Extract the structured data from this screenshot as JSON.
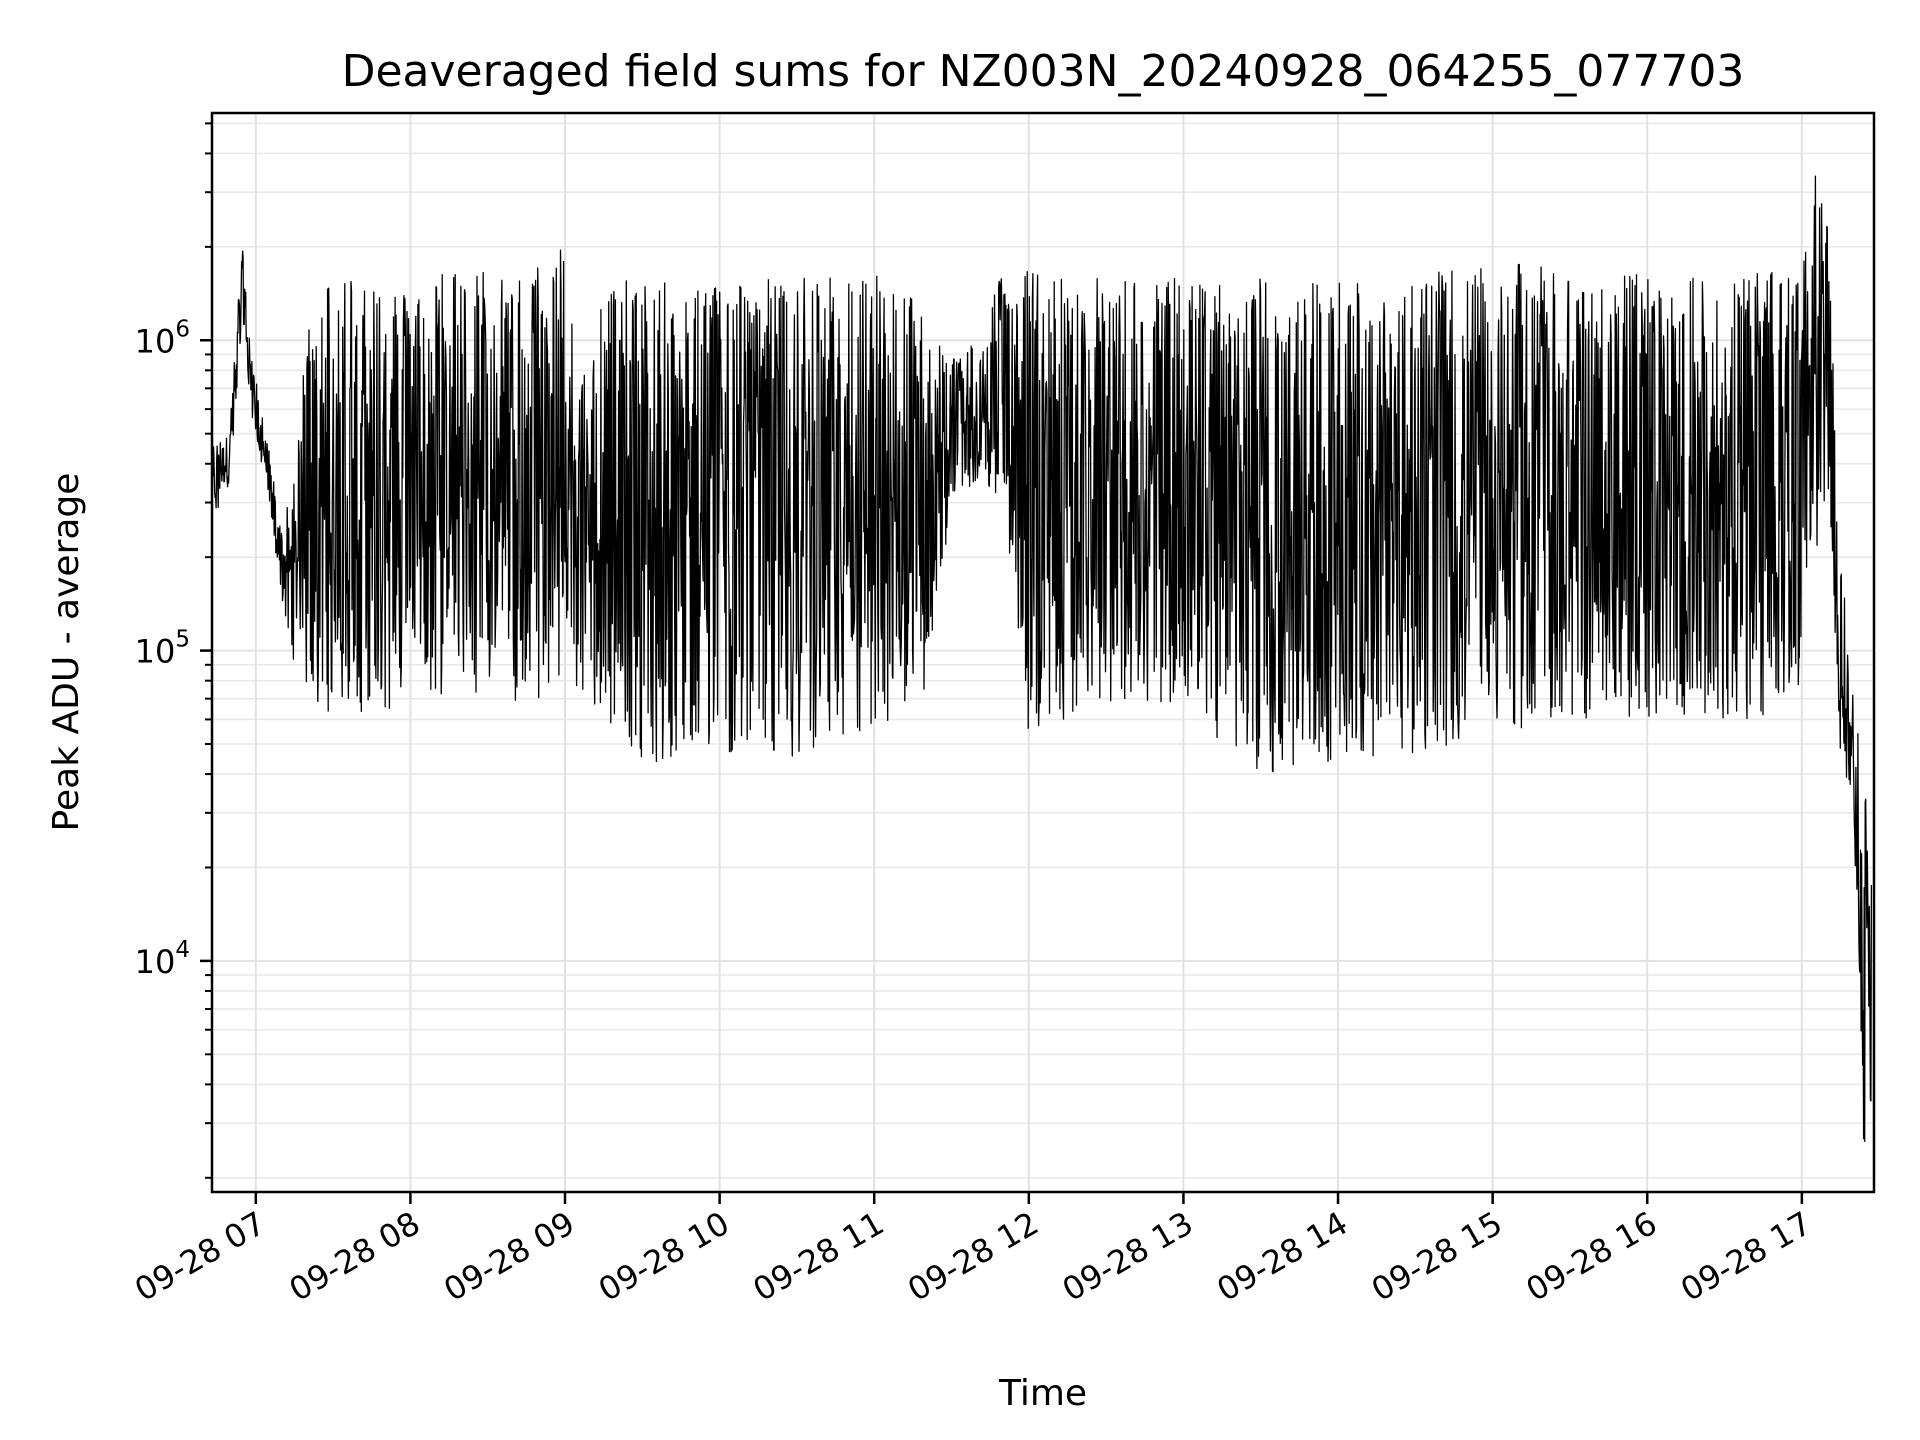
{
  "chart_data": {
    "type": "line",
    "title": "Deaveraged field sums for NZ003N_20240928_064255_077703",
    "xlabel": "Time",
    "ylabel": "Peak ADU - average",
    "y_scale": "log",
    "grid": true,
    "grid_minor": true,
    "line_color": "#000000",
    "x_range": [
      "2024-09-28 06:43",
      "2024-09-28 17:28"
    ],
    "y_range": [
      1800,
      5400000
    ],
    "x_ticks": [
      {
        "value": "2024-09-28 07:00",
        "label": "09-28 07"
      },
      {
        "value": "2024-09-28 08:00",
        "label": "09-28 08"
      },
      {
        "value": "2024-09-28 09:00",
        "label": "09-28 09"
      },
      {
        "value": "2024-09-28 10:00",
        "label": "09-28 10"
      },
      {
        "value": "2024-09-28 11:00",
        "label": "09-28 11"
      },
      {
        "value": "2024-09-28 12:00",
        "label": "09-28 12"
      },
      {
        "value": "2024-09-28 13:00",
        "label": "09-28 13"
      },
      {
        "value": "2024-09-28 14:00",
        "label": "09-28 14"
      },
      {
        "value": "2024-09-28 15:00",
        "label": "09-28 15"
      },
      {
        "value": "2024-09-28 16:00",
        "label": "09-28 16"
      },
      {
        "value": "2024-09-28 17:00",
        "label": "09-28 17"
      }
    ],
    "y_ticks": [
      {
        "value": 10000,
        "base": "10",
        "exp": "4"
      },
      {
        "value": 100000,
        "base": "10",
        "exp": "5"
      },
      {
        "value": 1000000,
        "base": "10",
        "exp": "6"
      }
    ],
    "series": [
      {
        "x": [
          "2024-09-28 06:43",
          "2024-09-28 06:50",
          "2024-09-28 06:55",
          "2024-09-28 06:58",
          "2024-09-28 07:00",
          "2024-09-28 07:05",
          "2024-09-28 07:10",
          "2024-09-28 07:15",
          "2024-09-28 07:20",
          "2024-09-28 07:30",
          "2024-09-28 07:45",
          "2024-09-28 08:00",
          "2024-09-28 08:15",
          "2024-09-28 08:30",
          "2024-09-28 08:45",
          "2024-09-28 09:00",
          "2024-09-28 09:05",
          "2024-09-28 09:15",
          "2024-09-28 09:30",
          "2024-09-28 09:45",
          "2024-09-28 10:00",
          "2024-09-28 10:15",
          "2024-09-28 10:30",
          "2024-09-28 10:45",
          "2024-09-28 11:00",
          "2024-09-28 11:10",
          "2024-09-28 11:20",
          "2024-09-28 11:30",
          "2024-09-28 11:40",
          "2024-09-28 11:50",
          "2024-09-28 12:00",
          "2024-09-28 12:15",
          "2024-09-28 12:30",
          "2024-09-28 12:45",
          "2024-09-28 13:00",
          "2024-09-28 13:15",
          "2024-09-28 13:30",
          "2024-09-28 13:45",
          "2024-09-28 14:00",
          "2024-09-28 14:15",
          "2024-09-28 14:30",
          "2024-09-28 14:45",
          "2024-09-28 15:00",
          "2024-09-28 15:15",
          "2024-09-28 15:30",
          "2024-09-28 15:45",
          "2024-09-28 16:00",
          "2024-09-28 16:15",
          "2024-09-28 16:30",
          "2024-09-28 16:45",
          "2024-09-28 17:00",
          "2024-09-28 17:05",
          "2024-09-28 17:10",
          "2024-09-28 17:15",
          "2024-09-28 17:20",
          "2024-09-28 17:24",
          "2024-09-28 17:27"
        ],
        "y_min": [
          250000,
          350000,
          1200000,
          600000,
          500000,
          300000,
          150000,
          90000,
          70000,
          60000,
          60000,
          70000,
          70000,
          75000,
          65000,
          80000,
          70000,
          60000,
          45000,
          40000,
          45000,
          45000,
          45000,
          48000,
          48000,
          55000,
          70000,
          300000,
          350000,
          300000,
          50000,
          60000,
          70000,
          60000,
          70000,
          50000,
          40000,
          40000,
          45000,
          45000,
          45000,
          50000,
          60000,
          55000,
          60000,
          60000,
          60000,
          60000,
          60000,
          60000,
          70000,
          200000,
          300000,
          45000,
          30000,
          2500,
          3000
        ],
        "y_max": [
          450000,
          550000,
          2200000,
          900000,
          750000,
          450000,
          250000,
          350000,
          1200000,
          1700000,
          1700000,
          1400000,
          1800000,
          1700000,
          1600000,
          2200000,
          800000,
          1500000,
          1600000,
          1500000,
          1600000,
          1600000,
          1600000,
          1600000,
          1700000,
          1600000,
          1200000,
          900000,
          1000000,
          1700000,
          1700000,
          1600000,
          1600000,
          1600000,
          1600000,
          1600000,
          1600000,
          1600000,
          1600000,
          1600000,
          1600000,
          1700000,
          1700000,
          1800000,
          1600000,
          1700000,
          1600000,
          1600000,
          1600000,
          1700000,
          1600000,
          3500000,
          2300000,
          220000,
          80000,
          35000,
          35000
        ]
      }
    ]
  }
}
